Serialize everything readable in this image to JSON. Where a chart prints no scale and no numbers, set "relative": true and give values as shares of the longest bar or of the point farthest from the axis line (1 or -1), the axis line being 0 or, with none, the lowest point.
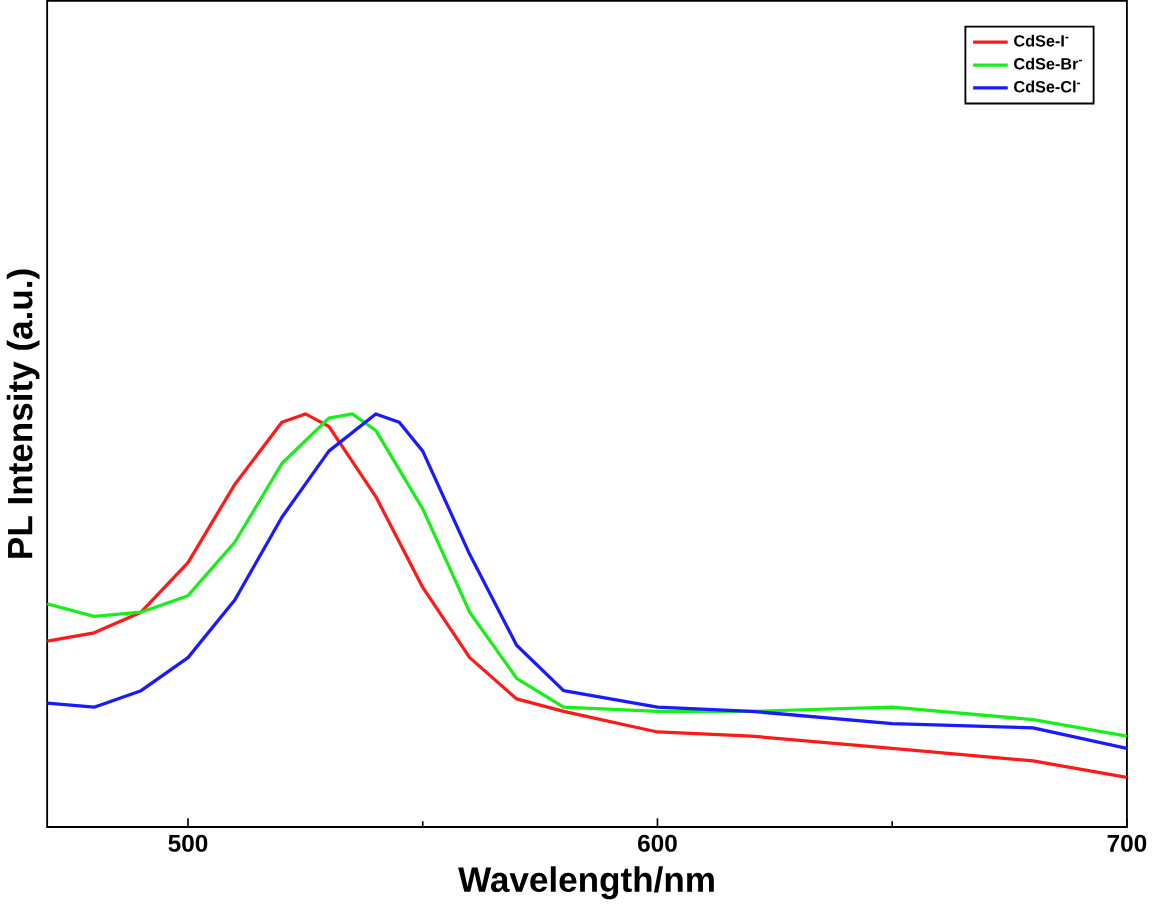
{
  "chart_data": {
    "type": "line",
    "xlabel": "Wavelength/nm",
    "ylabel": "PL Intensity (a.u.)",
    "relative": true,
    "xlim": [
      470,
      700
    ],
    "xticks": [
      500,
      600,
      700
    ],
    "legend": "top right",
    "grid": false,
    "marker": "none",
    "line_style": "solid",
    "series": [
      {
        "name": "CdSe-I$^{-}$",
        "color": "#ff1a1a",
        "x": [
          470,
          480,
          490,
          500,
          510,
          520,
          525,
          530,
          540,
          550,
          560,
          570,
          580,
          600,
          620,
          650,
          680,
          700
        ],
        "values": [
          0.45,
          0.47,
          0.52,
          0.64,
          0.83,
          0.98,
          1,
          0.97,
          0.8,
          0.58,
          0.41,
          0.31,
          0.28,
          0.23,
          0.22,
          0.19,
          0.16,
          0.12
        ]
      },
      {
        "name": "CdSe-Br$^{-}$",
        "color": "#1aee1a",
        "x": [
          470,
          480,
          490,
          500,
          510,
          520,
          530,
          535,
          540,
          550,
          560,
          570,
          580,
          600,
          620,
          650,
          680,
          700
        ],
        "values": [
          0.54,
          0.51,
          0.52,
          0.56,
          0.69,
          0.88,
          0.99,
          1,
          0.96,
          0.77,
          0.52,
          0.36,
          0.29,
          0.28,
          0.28,
          0.29,
          0.26,
          0.22
        ]
      },
      {
        "name": "CdSe-Cl$^{-}$",
        "color": "#1a1aff",
        "x": [
          470,
          480,
          490,
          500,
          510,
          520,
          530,
          540,
          545,
          550,
          560,
          570,
          580,
          600,
          620,
          650,
          680,
          700
        ],
        "values": [
          0.3,
          0.29,
          0.33,
          0.41,
          0.55,
          0.75,
          0.91,
          1,
          0.98,
          0.91,
          0.66,
          0.44,
          0.33,
          0.29,
          0.28,
          0.25,
          0.24,
          0.19
        ]
      }
    ]
  }
}
